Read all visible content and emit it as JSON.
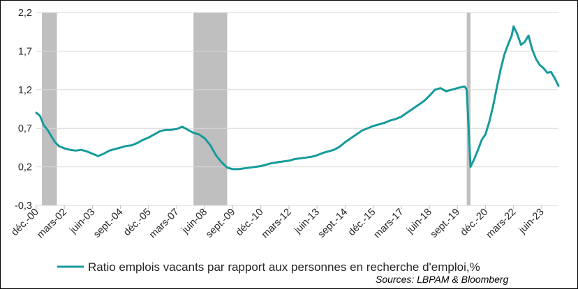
{
  "chart_data": {
    "type": "line",
    "title": "",
    "xlabel": "",
    "ylabel": "",
    "ylim": [
      -0.3,
      2.2
    ],
    "y_ticks": [
      "-0,3",
      "0,2",
      "0,7",
      "1,2",
      "1,7",
      "2,2"
    ],
    "y_tick_values": [
      -0.3,
      0.2,
      0.7,
      1.2,
      1.7,
      2.2
    ],
    "x_range": [
      "2000-12",
      "2024-03"
    ],
    "x_ticks": [
      {
        "label": "déc.-00",
        "date": "2000-12"
      },
      {
        "label": "mars-02",
        "date": "2002-03"
      },
      {
        "label": "juin-03",
        "date": "2003-06"
      },
      {
        "label": "sept.-04",
        "date": "2004-09"
      },
      {
        "label": "déc.-05",
        "date": "2005-12"
      },
      {
        "label": "mars-07",
        "date": "2007-03"
      },
      {
        "label": "juin-08",
        "date": "2008-06"
      },
      {
        "label": "sept.-09",
        "date": "2009-09"
      },
      {
        "label": "déc.-10",
        "date": "2010-12"
      },
      {
        "label": "mars-12",
        "date": "2012-03"
      },
      {
        "label": "juin-13",
        "date": "2013-06"
      },
      {
        "label": "sept.-14",
        "date": "2014-09"
      },
      {
        "label": "déc.-15",
        "date": "2015-12"
      },
      {
        "label": "mars-17",
        "date": "2017-03"
      },
      {
        "label": "juin-18",
        "date": "2018-06"
      },
      {
        "label": "sept.-19",
        "date": "2019-09"
      },
      {
        "label": "déc.-20",
        "date": "2020-12"
      },
      {
        "label": "mars-22",
        "date": "2022-03"
      },
      {
        "label": "juin-23",
        "date": "2023-06"
      }
    ],
    "recessions": [
      {
        "start": "2001-03",
        "end": "2001-11"
      },
      {
        "start": "2007-12",
        "end": "2009-06"
      },
      {
        "start": "2020-02",
        "end": "2020-04"
      }
    ],
    "grid": true,
    "legend_position": "bottom",
    "series": [
      {
        "name": "Ratio emplois vacants par rapport aux personnes en recherche d'emploi,%",
        "color": "#169b9b",
        "points": [
          [
            "2000-12",
            0.9
          ],
          [
            "2001-02",
            0.86
          ],
          [
            "2001-04",
            0.74
          ],
          [
            "2001-06",
            0.68
          ],
          [
            "2001-08",
            0.6
          ],
          [
            "2001-10",
            0.52
          ],
          [
            "2001-12",
            0.47
          ],
          [
            "2002-03",
            0.44
          ],
          [
            "2002-06",
            0.42
          ],
          [
            "2002-09",
            0.41
          ],
          [
            "2002-12",
            0.42
          ],
          [
            "2003-03",
            0.4
          ],
          [
            "2003-06",
            0.37
          ],
          [
            "2003-09",
            0.34
          ],
          [
            "2003-12",
            0.37
          ],
          [
            "2004-03",
            0.41
          ],
          [
            "2004-06",
            0.43
          ],
          [
            "2004-09",
            0.45
          ],
          [
            "2004-12",
            0.47
          ],
          [
            "2005-03",
            0.48
          ],
          [
            "2005-06",
            0.51
          ],
          [
            "2005-09",
            0.55
          ],
          [
            "2005-12",
            0.58
          ],
          [
            "2006-03",
            0.62
          ],
          [
            "2006-06",
            0.66
          ],
          [
            "2006-09",
            0.68
          ],
          [
            "2006-12",
            0.68
          ],
          [
            "2007-03",
            0.69
          ],
          [
            "2007-06",
            0.72
          ],
          [
            "2007-09",
            0.68
          ],
          [
            "2007-12",
            0.64
          ],
          [
            "2008-03",
            0.62
          ],
          [
            "2008-06",
            0.57
          ],
          [
            "2008-09",
            0.48
          ],
          [
            "2008-12",
            0.35
          ],
          [
            "2009-03",
            0.26
          ],
          [
            "2009-06",
            0.19
          ],
          [
            "2009-09",
            0.17
          ],
          [
            "2009-12",
            0.17
          ],
          [
            "2010-03",
            0.18
          ],
          [
            "2010-06",
            0.19
          ],
          [
            "2010-09",
            0.2
          ],
          [
            "2010-12",
            0.21
          ],
          [
            "2011-03",
            0.23
          ],
          [
            "2011-06",
            0.25
          ],
          [
            "2011-09",
            0.26
          ],
          [
            "2011-12",
            0.27
          ],
          [
            "2012-03",
            0.28
          ],
          [
            "2012-06",
            0.3
          ],
          [
            "2012-09",
            0.31
          ],
          [
            "2012-12",
            0.32
          ],
          [
            "2013-03",
            0.33
          ],
          [
            "2013-06",
            0.35
          ],
          [
            "2013-09",
            0.38
          ],
          [
            "2013-12",
            0.4
          ],
          [
            "2014-03",
            0.42
          ],
          [
            "2014-06",
            0.46
          ],
          [
            "2014-09",
            0.52
          ],
          [
            "2014-12",
            0.57
          ],
          [
            "2015-03",
            0.62
          ],
          [
            "2015-06",
            0.67
          ],
          [
            "2015-09",
            0.7
          ],
          [
            "2015-12",
            0.73
          ],
          [
            "2016-03",
            0.75
          ],
          [
            "2016-06",
            0.77
          ],
          [
            "2016-09",
            0.8
          ],
          [
            "2016-12",
            0.82
          ],
          [
            "2017-03",
            0.85
          ],
          [
            "2017-06",
            0.9
          ],
          [
            "2017-09",
            0.95
          ],
          [
            "2017-12",
            1.0
          ],
          [
            "2018-03",
            1.05
          ],
          [
            "2018-06",
            1.12
          ],
          [
            "2018-09",
            1.2
          ],
          [
            "2018-12",
            1.22
          ],
          [
            "2019-03",
            1.18
          ],
          [
            "2019-06",
            1.2
          ],
          [
            "2019-09",
            1.22
          ],
          [
            "2019-12",
            1.24
          ],
          [
            "2020-01",
            1.24
          ],
          [
            "2020-02",
            1.2
          ],
          [
            "2020-04",
            0.2
          ],
          [
            "2020-06",
            0.3
          ],
          [
            "2020-08",
            0.42
          ],
          [
            "2020-10",
            0.55
          ],
          [
            "2020-12",
            0.62
          ],
          [
            "2021-02",
            0.78
          ],
          [
            "2021-04",
            0.98
          ],
          [
            "2021-06",
            1.22
          ],
          [
            "2021-08",
            1.45
          ],
          [
            "2021-10",
            1.65
          ],
          [
            "2021-12",
            1.78
          ],
          [
            "2022-02",
            1.9
          ],
          [
            "2022-03",
            2.02
          ],
          [
            "2022-05",
            1.92
          ],
          [
            "2022-07",
            1.78
          ],
          [
            "2022-09",
            1.82
          ],
          [
            "2022-11",
            1.9
          ],
          [
            "2023-01",
            1.72
          ],
          [
            "2023-03",
            1.6
          ],
          [
            "2023-05",
            1.52
          ],
          [
            "2023-07",
            1.48
          ],
          [
            "2023-09",
            1.42
          ],
          [
            "2023-11",
            1.43
          ],
          [
            "2024-01",
            1.35
          ],
          [
            "2024-03",
            1.25
          ]
        ]
      }
    ],
    "source": "Sources: LBPAM & Bloomberg"
  }
}
